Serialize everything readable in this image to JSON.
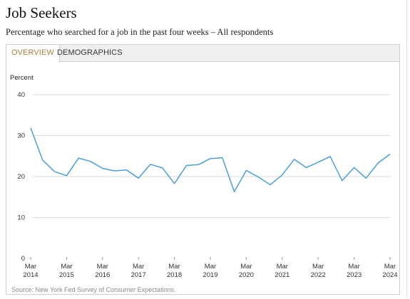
{
  "header": {
    "title": "Job Seekers",
    "subtitle": "Percentage who searched for a job in the past four weeks – All respondents"
  },
  "tabs": [
    {
      "label": "OVERVIEW",
      "active": true
    },
    {
      "label": "DEMOGRAPHICS",
      "active": false
    }
  ],
  "source": "Source: New York Fed Survey of Consumer Expectations.",
  "colors": {
    "line": "#4a9fd8",
    "grid": "#d9d9d9",
    "active_tab": "#a8803f"
  },
  "chart_data": {
    "type": "line",
    "ylabel": "Percent",
    "ylim": [
      0,
      40
    ],
    "yticks": [
      0,
      10,
      20,
      30,
      40
    ],
    "grid": true,
    "xticks": [
      {
        "year": 2014,
        "label": [
          "Mar",
          "2014"
        ]
      },
      {
        "year": 2015,
        "label": [
          "Mar",
          "2015"
        ]
      },
      {
        "year": 2016,
        "label": [
          "Mar",
          "2016"
        ]
      },
      {
        "year": 2017,
        "label": [
          "Mar",
          "2017"
        ]
      },
      {
        "year": 2018,
        "label": [
          "Mar",
          "2018"
        ]
      },
      {
        "year": 2019,
        "label": [
          "Mar",
          "2019"
        ]
      },
      {
        "year": 2020,
        "label": [
          "Mar",
          "2020"
        ]
      },
      {
        "year": 2021,
        "label": [
          "Mar",
          "2021"
        ]
      },
      {
        "year": 2022,
        "label": [
          "Mar",
          "2022"
        ]
      },
      {
        "year": 2023,
        "label": [
          "Mar",
          "2023"
        ]
      },
      {
        "year": 2024,
        "label": [
          "Mar",
          "2024"
        ]
      }
    ],
    "series": [
      {
        "points": [
          {
            "date": "2014-03",
            "value": 31.9
          },
          {
            "date": "2014-07",
            "value": 24.0
          },
          {
            "date": "2014-11",
            "value": 21.2
          },
          {
            "date": "2015-03",
            "value": 20.2
          },
          {
            "date": "2015-07",
            "value": 24.5
          },
          {
            "date": "2015-11",
            "value": 23.7
          },
          {
            "date": "2016-03",
            "value": 22.0
          },
          {
            "date": "2016-07",
            "value": 21.4
          },
          {
            "date": "2016-11",
            "value": 21.6
          },
          {
            "date": "2017-03",
            "value": 19.6
          },
          {
            "date": "2017-07",
            "value": 23.0
          },
          {
            "date": "2017-11",
            "value": 22.1
          },
          {
            "date": "2018-03",
            "value": 18.3
          },
          {
            "date": "2018-07",
            "value": 22.7
          },
          {
            "date": "2018-11",
            "value": 22.9
          },
          {
            "date": "2019-03",
            "value": 24.4
          },
          {
            "date": "2019-07",
            "value": 24.6
          },
          {
            "date": "2019-11",
            "value": 16.3
          },
          {
            "date": "2020-03",
            "value": 21.5
          },
          {
            "date": "2020-07",
            "value": 19.9
          },
          {
            "date": "2020-11",
            "value": 18.0
          },
          {
            "date": "2021-03",
            "value": 20.4
          },
          {
            "date": "2021-07",
            "value": 24.2
          },
          {
            "date": "2021-11",
            "value": 22.2
          },
          {
            "date": "2022-03",
            "value": 23.5
          },
          {
            "date": "2022-07",
            "value": 24.9
          },
          {
            "date": "2022-11",
            "value": 19.0
          },
          {
            "date": "2023-03",
            "value": 22.2
          },
          {
            "date": "2023-07",
            "value": 19.6
          },
          {
            "date": "2023-11",
            "value": 23.3
          },
          {
            "date": "2024-03",
            "value": 25.5
          }
        ]
      }
    ]
  }
}
